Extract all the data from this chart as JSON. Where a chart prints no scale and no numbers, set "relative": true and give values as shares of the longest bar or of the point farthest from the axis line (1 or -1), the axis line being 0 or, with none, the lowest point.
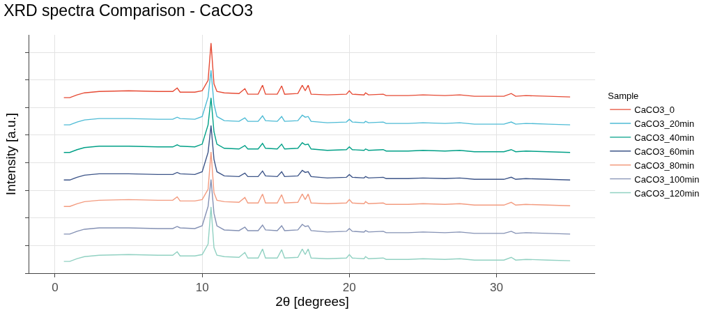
{
  "chart_data": {
    "type": "line",
    "title": "XRD spectra Comparison - CaCO3",
    "xlabel": "2θ [degrees]",
    "ylabel": "Intensity [a.u.]",
    "legend_title": "Sample",
    "legend": "right",
    "grid": true,
    "relative": true,
    "line_style": "solid",
    "xlim": [
      -1.75,
      36.7
    ],
    "xticks": [
      0,
      10,
      20,
      30
    ],
    "x": [
      0.6,
      1.0,
      1.5,
      2.0,
      3.0,
      5.0,
      7.0,
      8.0,
      8.3,
      8.5,
      9.5,
      10.0,
      10.4,
      10.6,
      10.8,
      11.0,
      11.5,
      12.5,
      12.9,
      13.1,
      13.8,
      14.1,
      14.3,
      15.1,
      15.4,
      15.6,
      16.5,
      16.8,
      17.0,
      17.2,
      17.4,
      18.5,
      19.8,
      20.0,
      20.2,
      21.0,
      21.1,
      21.3,
      22.3,
      22.5,
      24.0,
      25.0,
      26.5,
      27.5,
      28.5,
      30.5,
      31.0,
      31.3,
      32.0,
      33.5,
      35.0
    ],
    "series": [
      {
        "name": "CaCO3_0",
        "color": "#e64b35",
        "values": [
          0.763,
          0.763,
          0.775,
          0.784,
          0.79,
          0.793,
          0.79,
          0.79,
          0.805,
          0.787,
          0.787,
          0.793,
          0.838,
          1.0,
          0.823,
          0.79,
          0.784,
          0.781,
          0.802,
          0.778,
          0.778,
          0.817,
          0.778,
          0.778,
          0.814,
          0.778,
          0.781,
          0.817,
          0.793,
          0.817,
          0.778,
          0.775,
          0.778,
          0.793,
          0.778,
          0.775,
          0.784,
          0.775,
          0.778,
          0.772,
          0.772,
          0.775,
          0.772,
          0.775,
          0.769,
          0.769,
          0.781,
          0.769,
          0.772,
          0.769,
          0.766
        ]
      },
      {
        "name": "CaCO3_20min",
        "color": "#4dbbd5",
        "values": [
          0.645,
          0.645,
          0.657,
          0.666,
          0.672,
          0.672,
          0.669,
          0.669,
          0.678,
          0.672,
          0.669,
          0.681,
          0.765,
          0.882,
          0.735,
          0.681,
          0.663,
          0.66,
          0.675,
          0.66,
          0.66,
          0.684,
          0.663,
          0.66,
          0.681,
          0.66,
          0.663,
          0.687,
          0.678,
          0.681,
          0.66,
          0.654,
          0.657,
          0.669,
          0.657,
          0.654,
          0.66,
          0.654,
          0.657,
          0.651,
          0.651,
          0.654,
          0.651,
          0.654,
          0.648,
          0.648,
          0.657,
          0.648,
          0.651,
          0.648,
          0.645
        ]
      },
      {
        "name": "CaCO3_40min",
        "color": "#00a087",
        "values": [
          0.525,
          0.525,
          0.537,
          0.546,
          0.552,
          0.552,
          0.549,
          0.549,
          0.558,
          0.552,
          0.549,
          0.561,
          0.645,
          0.762,
          0.615,
          0.561,
          0.543,
          0.54,
          0.555,
          0.54,
          0.54,
          0.564,
          0.543,
          0.54,
          0.561,
          0.54,
          0.543,
          0.567,
          0.558,
          0.561,
          0.54,
          0.534,
          0.537,
          0.549,
          0.537,
          0.534,
          0.54,
          0.534,
          0.537,
          0.531,
          0.531,
          0.534,
          0.531,
          0.534,
          0.528,
          0.528,
          0.537,
          0.528,
          0.531,
          0.528,
          0.525
        ]
      },
      {
        "name": "CaCO3_60min",
        "color": "#3c5488",
        "values": [
          0.405,
          0.405,
          0.417,
          0.426,
          0.432,
          0.432,
          0.429,
          0.429,
          0.438,
          0.432,
          0.429,
          0.441,
          0.525,
          0.642,
          0.495,
          0.441,
          0.423,
          0.42,
          0.435,
          0.42,
          0.42,
          0.444,
          0.423,
          0.42,
          0.441,
          0.42,
          0.423,
          0.447,
          0.438,
          0.441,
          0.42,
          0.414,
          0.417,
          0.429,
          0.417,
          0.414,
          0.42,
          0.414,
          0.417,
          0.411,
          0.411,
          0.414,
          0.411,
          0.414,
          0.408,
          0.408,
          0.417,
          0.408,
          0.411,
          0.408,
          0.405
        ]
      },
      {
        "name": "CaCO3_80min",
        "color": "#f39b7f",
        "values": [
          0.29,
          0.29,
          0.302,
          0.311,
          0.317,
          0.32,
          0.317,
          0.317,
          0.332,
          0.314,
          0.314,
          0.32,
          0.365,
          0.527,
          0.35,
          0.317,
          0.311,
          0.308,
          0.329,
          0.305,
          0.305,
          0.344,
          0.305,
          0.305,
          0.341,
          0.305,
          0.308,
          0.344,
          0.32,
          0.344,
          0.305,
          0.302,
          0.305,
          0.32,
          0.305,
          0.302,
          0.311,
          0.302,
          0.305,
          0.299,
          0.299,
          0.302,
          0.299,
          0.302,
          0.296,
          0.296,
          0.308,
          0.296,
          0.299,
          0.296,
          0.293
        ]
      },
      {
        "name": "CaCO3_100min",
        "color": "#8491b4",
        "values": [
          0.17,
          0.17,
          0.182,
          0.191,
          0.197,
          0.197,
          0.194,
          0.194,
          0.203,
          0.197,
          0.194,
          0.206,
          0.29,
          0.407,
          0.26,
          0.206,
          0.188,
          0.185,
          0.2,
          0.185,
          0.185,
          0.209,
          0.188,
          0.185,
          0.206,
          0.185,
          0.188,
          0.212,
          0.203,
          0.206,
          0.185,
          0.179,
          0.182,
          0.194,
          0.182,
          0.179,
          0.185,
          0.179,
          0.182,
          0.176,
          0.176,
          0.179,
          0.176,
          0.179,
          0.173,
          0.173,
          0.182,
          0.173,
          0.176,
          0.173,
          0.17
        ]
      },
      {
        "name": "CaCO3_120min",
        "color": "#91d1c2",
        "values": [
          0.051,
          0.051,
          0.063,
          0.072,
          0.078,
          0.081,
          0.078,
          0.078,
          0.093,
          0.075,
          0.075,
          0.081,
          0.126,
          0.288,
          0.111,
          0.078,
          0.072,
          0.069,
          0.09,
          0.066,
          0.066,
          0.105,
          0.066,
          0.066,
          0.102,
          0.066,
          0.069,
          0.105,
          0.081,
          0.105,
          0.066,
          0.063,
          0.066,
          0.081,
          0.066,
          0.063,
          0.072,
          0.063,
          0.066,
          0.06,
          0.06,
          0.063,
          0.06,
          0.063,
          0.057,
          0.057,
          0.069,
          0.057,
          0.06,
          0.057,
          0.054
        ]
      }
    ]
  }
}
